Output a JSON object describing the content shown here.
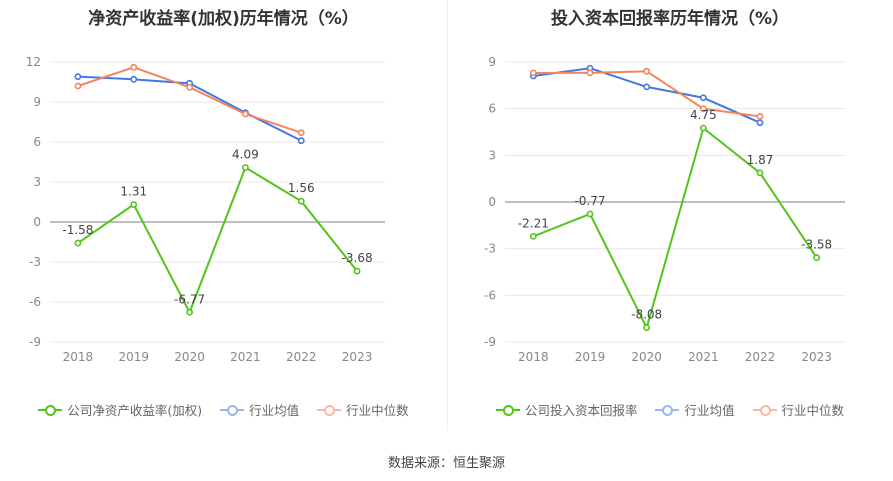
{
  "colors": {
    "company": "#52c41a",
    "industry_avg": "#4577e0",
    "industry_median": "#f5845e"
  },
  "source": "数据来源：恒生聚源",
  "chart_data": [
    {
      "type": "line",
      "title": "净资产收益率(加权)历年情况（%）",
      "categories": [
        "2018",
        "2019",
        "2020",
        "2021",
        "2022",
        "2023"
      ],
      "yticks": [
        "12",
        "9",
        "6",
        "3",
        "0",
        "-3",
        "-6",
        "-9"
      ],
      "ylim": [
        -9,
        12
      ],
      "series": [
        {
          "name": "公司净资产收益率(加权)",
          "values": [
            -1.58,
            1.31,
            -6.77,
            4.09,
            1.56,
            -3.68
          ],
          "labels": [
            "-1.58",
            "1.31",
            "-6.77",
            "4.09",
            "1.56",
            "-3.68"
          ]
        },
        {
          "name": "行业均值",
          "values": [
            10.9,
            10.7,
            10.4,
            8.2,
            6.1,
            null
          ]
        },
        {
          "name": "行业中位数",
          "values": [
            10.2,
            11.6,
            10.1,
            8.1,
            6.7,
            null
          ]
        }
      ]
    },
    {
      "type": "line",
      "title": "投入资本回报率历年情况（%）",
      "categories": [
        "2018",
        "2019",
        "2020",
        "2021",
        "2022",
        "2023"
      ],
      "yticks": [
        "9",
        "6",
        "3",
        "0",
        "-3",
        "-6",
        "-9"
      ],
      "ylim": [
        -9,
        9
      ],
      "series": [
        {
          "name": "公司投入资本回报率",
          "values": [
            -2.21,
            -0.77,
            -8.08,
            4.75,
            1.87,
            -3.58
          ],
          "labels": [
            "-2.21",
            "-0.77",
            "-8.08",
            "4.75",
            "1.87",
            "-3.58"
          ]
        },
        {
          "name": "行业均值",
          "values": [
            8.1,
            8.6,
            7.4,
            6.7,
            5.1,
            null
          ]
        },
        {
          "name": "行业中位数",
          "values": [
            8.3,
            8.3,
            8.4,
            6.0,
            5.5,
            null
          ]
        }
      ]
    }
  ]
}
